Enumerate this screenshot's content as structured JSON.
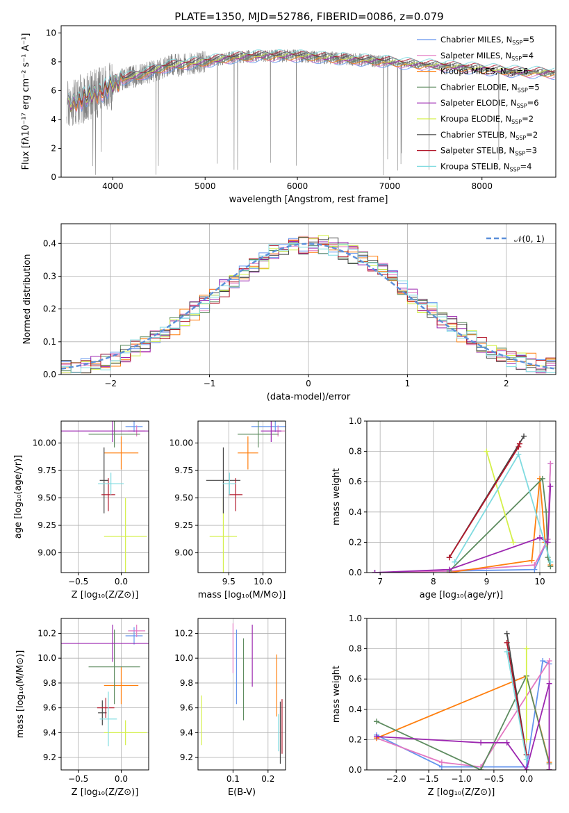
{
  "figure": {
    "title": "PLATE=1350, MJD=52786, FIBERID=0086, z=0.079"
  },
  "chart_data": [
    {
      "id": "spectrum",
      "type": "line",
      "xlabel": "wavelength [Angstrom, rest frame]",
      "ylabel": "Flux [fλ10⁻¹⁷ erg cm⁻² s⁻¹ A⁻¹]",
      "xlim": [
        3440,
        8800
      ],
      "ylim": [
        0,
        10.5
      ],
      "xticks": [
        4000,
        5000,
        6000,
        7000,
        8000
      ],
      "yticks": [
        0,
        2,
        4,
        6,
        8,
        10
      ],
      "grid": false,
      "legend_position": "right",
      "data_color": "#7f7f7f",
      "continuum_anchors": [
        [
          3500,
          5.0
        ],
        [
          3700,
          5.5
        ],
        [
          3900,
          6.0
        ],
        [
          4100,
          6.8
        ],
        [
          4300,
          7.1
        ],
        [
          4600,
          7.7
        ],
        [
          5000,
          8.0
        ],
        [
          5300,
          8.3
        ],
        [
          5600,
          8.4
        ],
        [
          6000,
          8.4
        ],
        [
          6500,
          8.2
        ],
        [
          7000,
          8.0
        ],
        [
          7300,
          7.8
        ],
        [
          7600,
          7.7
        ],
        [
          8000,
          7.5
        ],
        [
          8400,
          7.3
        ],
        [
          8800,
          7.2
        ]
      ],
      "series": [
        {
          "name": "Chabrier MILES",
          "nssp": "5",
          "color": "#6495ed"
        },
        {
          "name": "Salpeter MILES",
          "nssp": "4",
          "color": "#e377c2"
        },
        {
          "name": "Kroupa MILES",
          "nssp": "6",
          "color": "#ff7f0e"
        },
        {
          "name": "Chabrier ELODIE",
          "nssp": "5",
          "color": "#5e8c60"
        },
        {
          "name": "Salpeter ELODIE",
          "nssp": "6",
          "color": "#9c27b0"
        },
        {
          "name": "Kroupa ELODIE",
          "nssp": "2",
          "color": "#d4f04a"
        },
        {
          "name": "Chabrier STELIB",
          "nssp": "2",
          "color": "#444444"
        },
        {
          "name": "Salpeter STELIB",
          "nssp": "3",
          "color": "#b2182b"
        },
        {
          "name": "Kroupa STELIB",
          "nssp": "4",
          "color": "#7fdbe0"
        }
      ],
      "legend_label_suffix": "N",
      "legend_label_sub": "SSP"
    },
    {
      "id": "residuals",
      "type": "histogram",
      "xlabel": "(data-model)/error",
      "ylabel": "Normed distribution",
      "xlim": [
        -2.5,
        2.5
      ],
      "ylim": [
        0,
        0.46
      ],
      "xticks": [
        -2,
        -1,
        0,
        1,
        2
      ],
      "yticks": [
        0.0,
        0.1,
        0.2,
        0.3,
        0.4
      ],
      "grid": true,
      "legend_position": "top-right",
      "reference_curve": {
        "name": "𝒩(0, 1)",
        "color": "#5b8fd9",
        "style": "dashed"
      },
      "bin_width": 0.1
    },
    {
      "id": "age_vs_Z",
      "type": "errorbar",
      "xlabel": "Z [log₁₀(Z/Z⊙)]",
      "ylabel": "age  [log₁₀(age/yr)]",
      "xlim": [
        -0.7,
        0.32
      ],
      "ylim": [
        8.82,
        10.2
      ],
      "xticks": [
        -0.5,
        0.0
      ],
      "yticks": [
        9.0,
        9.25,
        9.5,
        9.75,
        10.0
      ],
      "grid": true,
      "points": [
        {
          "x": 0.15,
          "xerr": 0.1,
          "y": 10.15,
          "yerr": 0.05,
          "color": "#6495ed"
        },
        {
          "x": 0.18,
          "xerr": 0.1,
          "y": 10.11,
          "yerr": 0.05,
          "color": "#e377c2"
        },
        {
          "x": 0.0,
          "xerr": 0.2,
          "y": 9.91,
          "yerr": 0.15,
          "color": "#ff7f0e"
        },
        {
          "x": -0.08,
          "xerr": 0.3,
          "y": 10.08,
          "yerr": 0.12,
          "color": "#5e8c60"
        },
        {
          "x": -0.1,
          "xerr": 0.65,
          "y": 10.11,
          "yerr": 0.1,
          "color": "#9c27b0"
        },
        {
          "x": 0.05,
          "xerr": 0.25,
          "y": 9.15,
          "yerr": 0.35,
          "color": "#d4f04a"
        },
        {
          "x": -0.2,
          "xerr": 0.05,
          "y": 9.66,
          "yerr": 0.3,
          "color": "#444444"
        },
        {
          "x": -0.15,
          "xerr": 0.08,
          "y": 9.53,
          "yerr": 0.15,
          "color": "#b2182b"
        },
        {
          "x": -0.12,
          "xerr": 0.15,
          "y": 9.63,
          "yerr": 0.1,
          "color": "#7fdbe0"
        }
      ]
    },
    {
      "id": "age_vs_mass",
      "type": "errorbar",
      "xlabel": "mass [log₁₀(M/M⊙)]",
      "ylabel": "",
      "xlim": [
        9.05,
        10.33
      ],
      "ylim": [
        8.82,
        10.2
      ],
      "xticks": [
        9.5,
        10.0
      ],
      "yticks": [
        9.0,
        9.25,
        9.5,
        9.75,
        10.0
      ],
      "grid": true,
      "points": [
        {
          "x": 10.18,
          "xerr": 0.35,
          "y": 10.15,
          "yerr": 0.05,
          "color": "#6495ed"
        },
        {
          "x": 10.22,
          "xerr": 0.1,
          "y": 10.11,
          "yerr": 0.05,
          "color": "#e377c2"
        },
        {
          "x": 9.78,
          "xerr": 0.15,
          "y": 9.91,
          "yerr": 0.15,
          "color": "#ff7f0e"
        },
        {
          "x": 9.93,
          "xerr": 0.3,
          "y": 10.08,
          "yerr": 0.12,
          "color": "#5e8c60"
        },
        {
          "x": 10.12,
          "xerr": 0.15,
          "y": 10.11,
          "yerr": 0.1,
          "color": "#9c27b0"
        },
        {
          "x": 9.42,
          "xerr": 0.2,
          "y": 9.15,
          "yerr": 0.35,
          "color": "#d4f04a"
        },
        {
          "x": 9.42,
          "xerr": 0.25,
          "y": 9.66,
          "yerr": 0.3,
          "color": "#444444"
        },
        {
          "x": 9.6,
          "xerr": 0.1,
          "y": 9.53,
          "yerr": 0.15,
          "color": "#b2182b"
        },
        {
          "x": 9.51,
          "xerr": 0.1,
          "y": 9.63,
          "yerr": 0.1,
          "color": "#7fdbe0"
        }
      ]
    },
    {
      "id": "weight_vs_age",
      "type": "line",
      "xlabel": "age  [log₁₀(age/yr)]",
      "ylabel": "mass weight",
      "xlim": [
        6.75,
        10.3
      ],
      "ylim": [
        0,
        1.0
      ],
      "xticks": [
        7,
        8,
        9,
        10
      ],
      "yticks": [
        0.0,
        0.2,
        0.4,
        0.6,
        0.8,
        1.0
      ],
      "grid": true,
      "series": [
        {
          "color": "#6495ed",
          "x": [
            6.9,
            8.3,
            9.9,
            10.15,
            10.2
          ],
          "y": [
            0.0,
            0.01,
            0.02,
            0.22,
            0.72
          ]
        },
        {
          "color": "#e377c2",
          "x": [
            6.9,
            8.3,
            9.9,
            10.15,
            10.2
          ],
          "y": [
            0.0,
            0.01,
            0.05,
            0.22,
            0.72
          ]
        },
        {
          "color": "#ff7f0e",
          "x": [
            8.3,
            9.85,
            10.0,
            10.1,
            10.2
          ],
          "y": [
            0.0,
            0.08,
            0.62,
            0.2,
            0.05
          ]
        },
        {
          "color": "#5e8c60",
          "x": [
            8.3,
            10.05,
            10.12,
            10.15,
            10.2
          ],
          "y": [
            0.01,
            0.62,
            0.4,
            0.1,
            0.04
          ]
        },
        {
          "color": "#9c27b0",
          "x": [
            6.9,
            8.3,
            10.0,
            10.15,
            10.2
          ],
          "y": [
            0.0,
            0.02,
            0.23,
            0.2,
            0.57
          ]
        },
        {
          "color": "#d4f04a",
          "x": [
            9.0,
            9.5
          ],
          "y": [
            0.8,
            0.2
          ]
        },
        {
          "color": "#444444",
          "x": [
            8.3,
            9.7
          ],
          "y": [
            0.1,
            0.9
          ]
        },
        {
          "color": "#b2182b",
          "x": [
            8.3,
            9.6,
            9.62
          ],
          "y": [
            0.1,
            0.83,
            0.85
          ]
        },
        {
          "color": "#7fdbe0",
          "x": [
            8.4,
            9.6,
            10.2
          ],
          "y": [
            0.07,
            0.78,
            0.07
          ]
        }
      ]
    },
    {
      "id": "mass_vs_Z",
      "type": "errorbar",
      "xlabel": "Z [log₁₀(Z/Z⊙)]",
      "ylabel": "mass [log₁₀(M/M⊙)]",
      "xlim": [
        -0.7,
        0.32
      ],
      "ylim": [
        9.1,
        10.32
      ],
      "xticks": [
        -0.5,
        0.0
      ],
      "yticks": [
        9.2,
        9.4,
        9.6,
        9.8,
        10.0,
        10.2
      ],
      "grid": true,
      "points": [
        {
          "x": 0.15,
          "xerr": 0.1,
          "y": 10.18,
          "yerr": 0.07,
          "color": "#6495ed"
        },
        {
          "x": 0.18,
          "xerr": 0.1,
          "y": 10.22,
          "yerr": 0.05,
          "color": "#e377c2"
        },
        {
          "x": 0.0,
          "xerr": 0.2,
          "y": 9.78,
          "yerr": 0.15,
          "color": "#ff7f0e"
        },
        {
          "x": -0.08,
          "xerr": 0.3,
          "y": 9.93,
          "yerr": 0.3,
          "color": "#5e8c60"
        },
        {
          "x": -0.1,
          "xerr": 0.65,
          "y": 10.12,
          "yerr": 0.15,
          "color": "#9c27b0"
        },
        {
          "x": 0.05,
          "xerr": 0.25,
          "y": 9.4,
          "yerr": 0.1,
          "color": "#d4f04a"
        },
        {
          "x": -0.22,
          "xerr": 0.05,
          "y": 9.56,
          "yerr": 0.1,
          "color": "#444444"
        },
        {
          "x": -0.18,
          "xerr": 0.1,
          "y": 9.6,
          "yerr": 0.08,
          "color": "#b2182b"
        },
        {
          "x": -0.15,
          "xerr": 0.1,
          "y": 9.51,
          "yerr": 0.22,
          "color": "#7fdbe0"
        }
      ]
    },
    {
      "id": "mass_vs_ebv",
      "type": "errorbar",
      "xlabel": "E(B-V)",
      "ylabel": "",
      "xlim": [
        0.0,
        0.25
      ],
      "ylim": [
        9.1,
        10.32
      ],
      "xticks": [
        0.1,
        0.2
      ],
      "yticks": [
        9.2,
        9.4,
        9.6,
        9.8,
        10.0,
        10.2
      ],
      "grid": true,
      "points": [
        {
          "x": 0.11,
          "xerr": 0.0,
          "y": 9.93,
          "yerr": 0.3,
          "color": "#6495ed"
        },
        {
          "x": 0.1,
          "xerr": 0.0,
          "y": 10.08,
          "yerr": 0.2,
          "color": "#e377c2"
        },
        {
          "x": 0.225,
          "xerr": 0.0,
          "y": 9.78,
          "yerr": 0.25,
          "color": "#ff7f0e"
        },
        {
          "x": 0.13,
          "xerr": 0.0,
          "y": 9.83,
          "yerr": 0.33,
          "color": "#5e8c60"
        },
        {
          "x": 0.155,
          "xerr": 0.0,
          "y": 10.02,
          "yerr": 0.25,
          "color": "#9c27b0"
        },
        {
          "x": 0.01,
          "xerr": 0.0,
          "y": 9.5,
          "yerr": 0.2,
          "color": "#d4f04a"
        },
        {
          "x": 0.235,
          "xerr": 0.0,
          "y": 9.4,
          "yerr": 0.25,
          "color": "#444444"
        },
        {
          "x": 0.24,
          "xerr": 0.0,
          "y": 9.45,
          "yerr": 0.22,
          "color": "#b2182b"
        },
        {
          "x": 0.23,
          "xerr": 0.0,
          "y": 9.4,
          "yerr": 0.15,
          "color": "#7fdbe0"
        }
      ]
    },
    {
      "id": "weight_vs_Z",
      "type": "line",
      "xlabel": "Z [log₁₀(Z/Z⊙)]",
      "ylabel": "mass weight",
      "xlim": [
        -2.45,
        0.45
      ],
      "ylim": [
        0,
        1.0
      ],
      "xticks": [
        -2.0,
        -1.5,
        -1.0,
        -0.5,
        0.0
      ],
      "yticks": [
        0.0,
        0.2,
        0.4,
        0.6,
        0.8,
        1.0
      ],
      "grid": true,
      "series": [
        {
          "color": "#6495ed",
          "x": [
            -2.3,
            -1.3,
            0.0,
            0.25,
            0.35,
            0.35
          ],
          "y": [
            0.23,
            0.02,
            0.02,
            0.72,
            0.7,
            0.0
          ]
        },
        {
          "color": "#e377c2",
          "x": [
            -2.3,
            -1.3,
            -0.7,
            0.35,
            0.35
          ],
          "y": [
            0.21,
            0.05,
            0.02,
            0.72,
            0.0
          ]
        },
        {
          "color": "#ff7f0e",
          "x": [
            -2.3,
            0.0,
            0.35,
            0.35
          ],
          "y": [
            0.21,
            0.62,
            0.05,
            0.0
          ]
        },
        {
          "color": "#5e8c60",
          "x": [
            -2.3,
            -0.7,
            0.0,
            0.35,
            0.35
          ],
          "y": [
            0.32,
            0.0,
            0.62,
            0.04,
            0.0
          ]
        },
        {
          "color": "#9c27b0",
          "x": [
            -2.3,
            -0.7,
            -0.3,
            0.0,
            0.35,
            0.35
          ],
          "y": [
            0.22,
            0.18,
            0.18,
            0.0,
            0.57,
            0.0
          ]
        },
        {
          "color": "#d4f04a",
          "x": [
            0.0,
            0.0
          ],
          "y": [
            0.8,
            0.2
          ]
        },
        {
          "color": "#444444",
          "x": [
            -0.3,
            0.0
          ],
          "y": [
            0.9,
            0.1
          ]
        },
        {
          "color": "#b2182b",
          "x": [
            -0.3,
            0.0
          ],
          "y": [
            0.84,
            0.1
          ]
        },
        {
          "color": "#7fdbe0",
          "x": [
            -0.3,
            0.0
          ],
          "y": [
            0.78,
            0.07
          ]
        }
      ]
    }
  ]
}
